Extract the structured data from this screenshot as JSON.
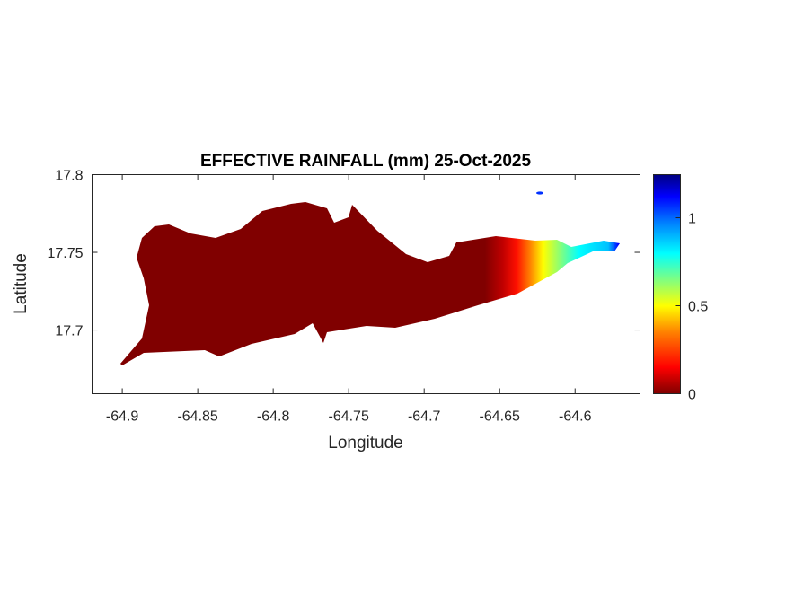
{
  "chart_data": {
    "type": "heatmap",
    "title": "EFFECTIVE RAINFALL (mm) 25-Oct-2025",
    "xlabel": "Longitude",
    "ylabel": "Latitude",
    "xlim": [
      -64.92,
      -64.557
    ],
    "ylim": [
      17.659,
      17.8
    ],
    "xticks": [
      -64.9,
      -64.85,
      -64.8,
      -64.75,
      -64.7,
      -64.65,
      -64.6
    ],
    "xtick_labels": [
      "-64.9",
      "-64.85",
      "-64.8",
      "-64.75",
      "-64.7",
      "-64.65",
      "-64.6"
    ],
    "yticks": [
      17.7,
      17.75,
      17.8
    ],
    "ytick_labels": [
      "17.7",
      "17.75",
      "17.8"
    ],
    "grid": false,
    "colormap": "jet",
    "colorbar": {
      "location": "right",
      "clim": [
        0,
        1.245
      ],
      "ticks": [
        0,
        0.5,
        1
      ],
      "tick_labels": [
        "0",
        "0.5",
        "1"
      ]
    },
    "field_description_by_longitude": [
      {
        "lon": -64.9,
        "value": 0
      },
      {
        "lon": -64.66,
        "value": 0
      },
      {
        "lon": -64.64,
        "value": 0.2
      },
      {
        "lon": -64.63,
        "value": 0.45
      },
      {
        "lon": -64.615,
        "value": 0.6
      },
      {
        "lon": -64.6,
        "value": 0.8
      },
      {
        "lon": -64.57,
        "value": 1.1
      }
    ]
  }
}
